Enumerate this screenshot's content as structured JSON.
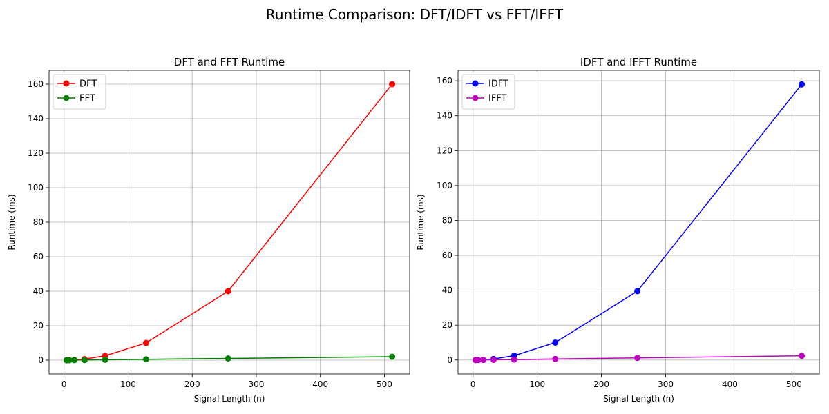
{
  "figure": {
    "suptitle": "Runtime Comparison: DFT/IDFT vs FFT/IFFT"
  },
  "chart_data": [
    {
      "type": "line",
      "title": "DFT and FFT Runtime",
      "xlabel": "Signal Length (n)",
      "ylabel": "Runtime (ms)",
      "xlim": [
        -23.4,
        539.4
      ],
      "ylim": [
        -8,
        168
      ],
      "xticks": [
        0,
        100,
        200,
        300,
        400,
        500
      ],
      "yticks": [
        0,
        20,
        40,
        60,
        80,
        100,
        120,
        140,
        160
      ],
      "grid": true,
      "legend": "top-left",
      "x": [
        4,
        8,
        16,
        32,
        64,
        128,
        256,
        512
      ],
      "series": [
        {
          "name": "DFT",
          "color": "#ff0000",
          "values": [
            0.01,
            0.04,
            0.15,
            0.6,
            2.5,
            10,
            40,
            160
          ]
        },
        {
          "name": "FFT",
          "color": "#008000",
          "values": [
            0.01,
            0.02,
            0.05,
            0.1,
            0.25,
            0.5,
            1.0,
            2.0
          ]
        }
      ]
    },
    {
      "type": "line",
      "title": "IDFT and IFFT Runtime",
      "xlabel": "Signal Length (n)",
      "ylabel": "Runtime (ms)",
      "xlim": [
        -23.4,
        539.4
      ],
      "ylim": [
        -8,
        166
      ],
      "xticks": [
        0,
        100,
        200,
        300,
        400,
        500
      ],
      "yticks": [
        0,
        20,
        40,
        60,
        80,
        100,
        120,
        140,
        160
      ],
      "grid": true,
      "legend": "top-left",
      "x": [
        4,
        8,
        16,
        32,
        64,
        128,
        256,
        512
      ],
      "series": [
        {
          "name": "IDFT",
          "color": "#0000ff",
          "values": [
            0.01,
            0.04,
            0.15,
            0.6,
            2.5,
            10,
            39.5,
            158
          ]
        },
        {
          "name": "IFFT",
          "color": "#bf00bf",
          "values": [
            0.01,
            0.02,
            0.05,
            0.1,
            0.25,
            0.6,
            1.2,
            2.4
          ]
        }
      ]
    }
  ]
}
